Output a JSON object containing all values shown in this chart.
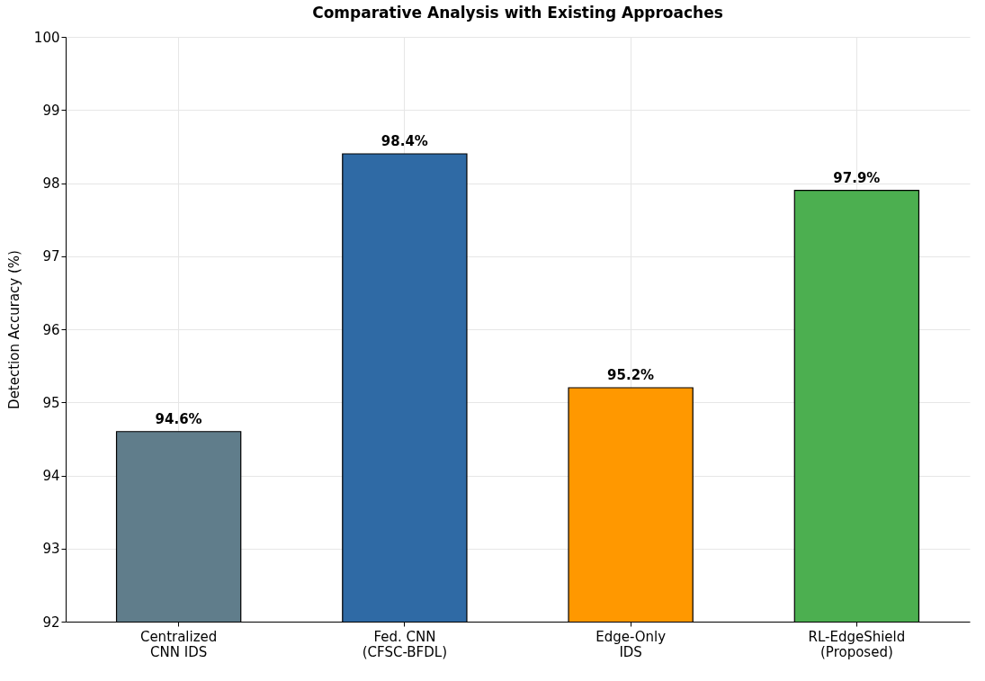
{
  "chart_data": {
    "type": "bar",
    "title": "Comparative Analysis with Existing Approaches",
    "ylabel": "Detection Accuracy (%)",
    "categories": [
      "Centralized\nCNN IDS",
      "Fed. CNN\n(CFSC-BFDL)",
      "Edge-Only\nIDS",
      "RL-EdgeShield\n(Proposed)"
    ],
    "values": [
      94.6,
      98.4,
      95.2,
      97.9
    ],
    "colors": [
      "#607d8b",
      "#2f6aa5",
      "#ff9800",
      "#4caf50"
    ],
    "value_labels": [
      "94.6%",
      "98.4%",
      "95.2%",
      "97.9%"
    ],
    "ylim": [
      92,
      100
    ],
    "yticks": [
      92,
      93,
      94,
      95,
      96,
      97,
      98,
      99,
      100
    ],
    "grid": true
  }
}
